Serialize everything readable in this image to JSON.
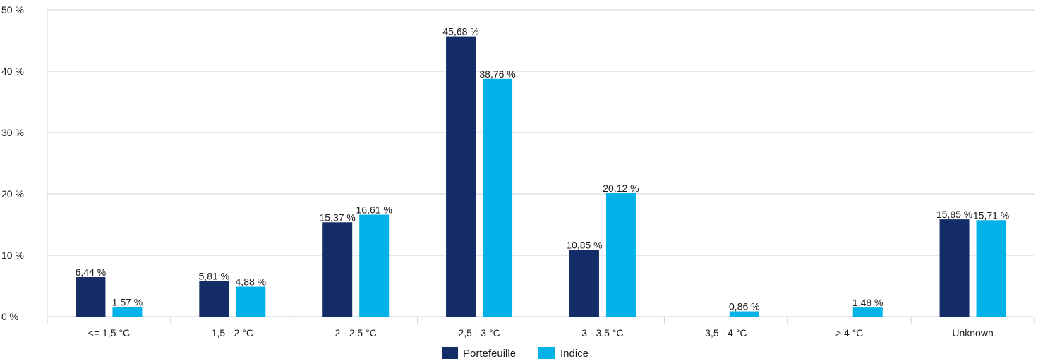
{
  "chart_data": {
    "type": "bar",
    "title": "",
    "xlabel": "",
    "ylabel": "",
    "ylim": [
      0,
      50
    ],
    "y_ticks": [
      0,
      10,
      20,
      30,
      40,
      50
    ],
    "y_tick_labels": [
      "0 %",
      "10 %",
      "20 %",
      "30 %",
      "40 %",
      "50 %"
    ],
    "grid": true,
    "legend_position": "bottom",
    "categories": [
      "<= 1,5 °C",
      "1,5 - 2 °C",
      "2 - 2,5 °C",
      "2,5 - 3 °C",
      "3 - 3,5 °C",
      "3,5 - 4 °C",
      "> 4 °C",
      "Unknown"
    ],
    "series": [
      {
        "name": "Portefeuille",
        "color": "#142d69",
        "values": [
          6.44,
          5.81,
          15.37,
          45.68,
          10.85,
          null,
          null,
          15.85
        ],
        "labels": [
          "6,44 %",
          "5,81 %",
          "15,37 %",
          "45,68 %",
          "10,85 %",
          null,
          null,
          "15,85 %"
        ]
      },
      {
        "name": "Indice",
        "color": "#00b2e8",
        "values": [
          1.57,
          4.88,
          16.61,
          38.76,
          20.12,
          0.86,
          1.48,
          15.71
        ],
        "labels": [
          "1,57 %",
          "4,88 %",
          "16,61 %",
          "38,76 %",
          "20,12 %",
          "0,86 %",
          "1,48 %",
          "15,71 %"
        ]
      }
    ]
  }
}
